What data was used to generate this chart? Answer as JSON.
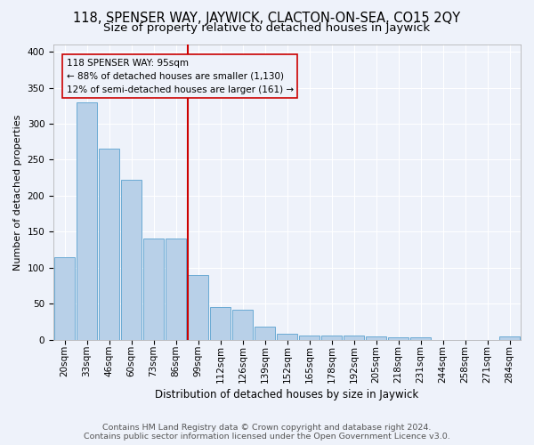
{
  "title1": "118, SPENSER WAY, JAYWICK, CLACTON-ON-SEA, CO15 2QY",
  "title2": "Size of property relative to detached houses in Jaywick",
  "xlabel": "Distribution of detached houses by size in Jaywick",
  "ylabel": "Number of detached properties",
  "categories": [
    "20sqm",
    "33sqm",
    "46sqm",
    "60sqm",
    "73sqm",
    "86sqm",
    "99sqm",
    "112sqm",
    "126sqm",
    "139sqm",
    "152sqm",
    "165sqm",
    "178sqm",
    "192sqm",
    "205sqm",
    "218sqm",
    "231sqm",
    "244sqm",
    "258sqm",
    "271sqm",
    "284sqm"
  ],
  "values": [
    115,
    330,
    265,
    222,
    140,
    140,
    90,
    45,
    42,
    18,
    8,
    6,
    6,
    6,
    5,
    3,
    3,
    0,
    0,
    0,
    4
  ],
  "bar_color": "#b8d0e8",
  "bar_edge_color": "#6aaad4",
  "annotation_line1": "118 SPENSER WAY: 95sqm",
  "annotation_line2": "← 88% of detached houses are smaller (1,130)",
  "annotation_line3": "12% of semi-detached houses are larger (161) →",
  "vline_color": "#cc0000",
  "bg_color": "#eef2fa",
  "grid_color": "#ffffff",
  "ylim": [
    0,
    410
  ],
  "yticks": [
    0,
    50,
    100,
    150,
    200,
    250,
    300,
    350,
    400
  ],
  "title1_fontsize": 10.5,
  "title2_fontsize": 9.5,
  "xlabel_fontsize": 8.5,
  "ylabel_fontsize": 8,
  "tick_fontsize": 7.5,
  "annot_fontsize": 7.5,
  "footer1": "Contains HM Land Registry data © Crown copyright and database right 2024.",
  "footer2": "Contains public sector information licensed under the Open Government Licence v3.0.",
  "footer_fontsize": 6.8
}
